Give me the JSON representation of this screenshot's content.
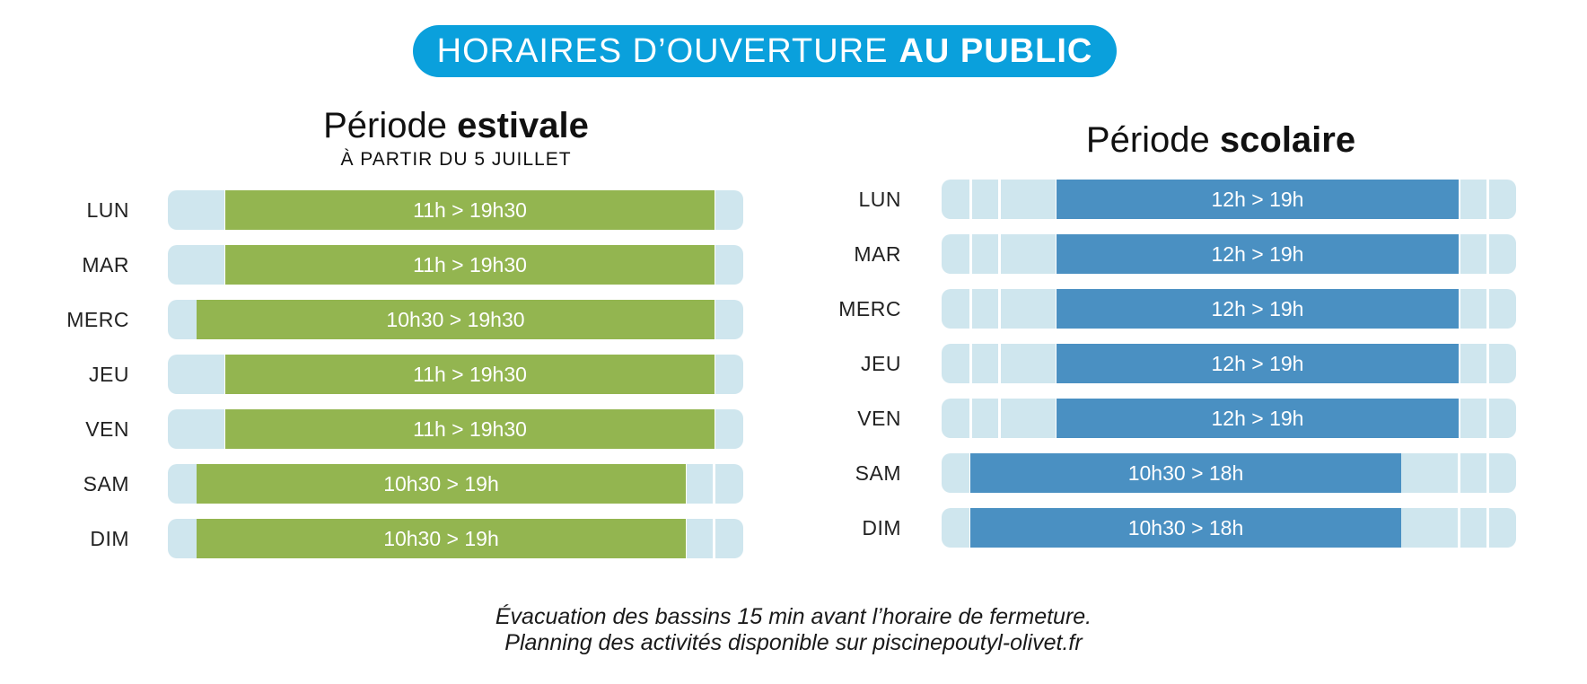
{
  "header": {
    "title_light": "HORAIRES D’OUVERTURE",
    "title_bold": "AU PUBLIC"
  },
  "colors": {
    "header_bg": "#0aa0dc",
    "summer_fill": "#93b550",
    "school_fill": "#4a90c2",
    "track_bg": "#cfe6ee"
  },
  "summer": {
    "title_light": "Période",
    "title_bold": "estivale",
    "subtitle": "À PARTIR DU 5 JUILLET",
    "rows": [
      {
        "day": "LUN",
        "label": "11h > 19h30",
        "start": 11.0,
        "end": 19.5
      },
      {
        "day": "MAR",
        "label": "11h > 19h30",
        "start": 11.0,
        "end": 19.5
      },
      {
        "day": "MERC",
        "label": "10h30 > 19h30",
        "start": 10.5,
        "end": 19.5
      },
      {
        "day": "JEU",
        "label": "11h > 19h30",
        "start": 11.0,
        "end": 19.5
      },
      {
        "day": "VEN",
        "label": "11h > 19h30",
        "start": 11.0,
        "end": 19.5
      },
      {
        "day": "SAM",
        "label": "10h30 > 19h",
        "start": 10.5,
        "end": 19.0
      },
      {
        "day": "DIM",
        "label": "10h30 > 19h",
        "start": 10.5,
        "end": 19.0
      }
    ]
  },
  "school": {
    "title_light": "Période",
    "title_bold": "scolaire",
    "rows": [
      {
        "day": "LUN",
        "label": "12h > 19h",
        "start": 12.0,
        "end": 19.0
      },
      {
        "day": "MAR",
        "label": "12h > 19h",
        "start": 12.0,
        "end": 19.0
      },
      {
        "day": "MERC",
        "label": "12h > 19h",
        "start": 12.0,
        "end": 19.0
      },
      {
        "day": "JEU",
        "label": "12h > 19h",
        "start": 12.0,
        "end": 19.0
      },
      {
        "day": "VEN",
        "label": "12h > 19h",
        "start": 12.0,
        "end": 19.0
      },
      {
        "day": "SAM",
        "label": "10h30 > 18h",
        "start": 10.5,
        "end": 18.0
      },
      {
        "day": "DIM",
        "label": "10h30 > 18h",
        "start": 10.5,
        "end": 18.0
      }
    ]
  },
  "footer": {
    "line1": "Évacuation des bassins 15 min avant l’horaire de fermeture.",
    "line2": "Planning des activités disponible sur piscinepoutyl-olivet.fr"
  }
}
